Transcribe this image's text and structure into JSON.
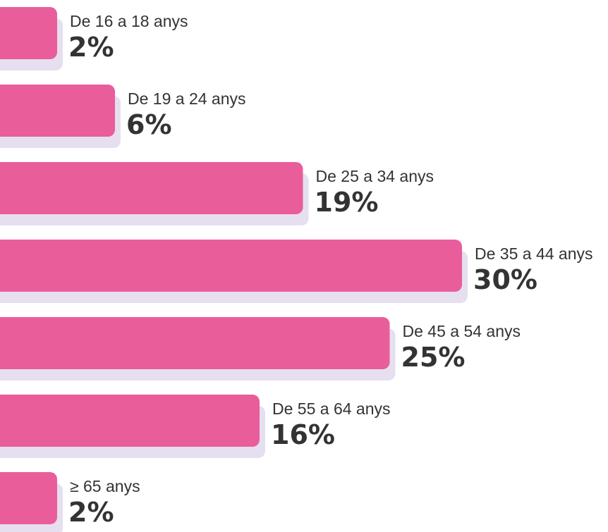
{
  "chart_data": {
    "type": "bar",
    "orientation": "horizontal",
    "categories": [
      "De 16 a 18 anys",
      "De 19 a 24 anys",
      "De 25 a 34 anys",
      "De 35 a 44 anys",
      "De 45 a 54 anys",
      "De 55 a 64 anys",
      "≥ 65 anys"
    ],
    "values": [
      2,
      6,
      19,
      30,
      25,
      16,
      2
    ],
    "value_labels": [
      "2%",
      "6%",
      "19%",
      "30%",
      "25%",
      "16%",
      "2%"
    ],
    "color": "#e95d9b",
    "shadow_color": "#e6dff0"
  }
}
